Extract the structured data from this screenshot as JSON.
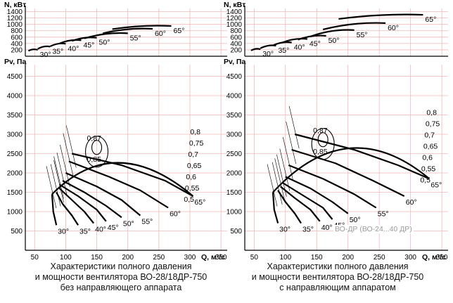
{
  "chart_data": [
    {
      "type": "line",
      "panel": "left",
      "power_axis": {
        "label": "N, кВт",
        "ticks": [
          200,
          400,
          600,
          800,
          1000,
          1200,
          1400
        ],
        "range": [
          0,
          1500
        ]
      },
      "power_curves": [
        {
          "angle": "30°",
          "q": [
            40,
            55
          ],
          "n": [
            170,
            200
          ]
        },
        {
          "angle": "35°",
          "q": [
            55,
            75
          ],
          "n": [
            230,
            300
          ]
        },
        {
          "angle": "40°",
          "q": [
            75,
            100
          ],
          "n": [
            310,
            390
          ]
        },
        {
          "angle": "45°",
          "q": [
            90,
            125
          ],
          "n": [
            400,
            500
          ]
        },
        {
          "angle": "50°",
          "q": [
            110,
            150
          ],
          "n": [
            480,
            580
          ]
        },
        {
          "angle": "55°",
          "q": [
            130,
            200
          ],
          "n": [
            560,
            720
          ]
        },
        {
          "angle": "60°",
          "q": [
            160,
            240
          ],
          "n": [
            720,
            860
          ]
        },
        {
          "angle": "65°",
          "q": [
            175,
            270
          ],
          "n": [
            850,
            950
          ]
        }
      ],
      "pressure_axis": {
        "label": "Pv, Па",
        "ticks": [
          500,
          1000,
          1500,
          2000,
          2500,
          3000,
          3500,
          4000,
          4500
        ],
        "range": [
          0,
          4800
        ]
      },
      "flow_axis": {
        "label": "Q, м³/с",
        "ticks": [
          50,
          100,
          150,
          200,
          250,
          300,
          350
        ],
        "range": [
          35,
          360
        ]
      },
      "blade_angles": [
        "30°",
        "35°",
        "40°",
        "45°",
        "50°",
        "55°",
        "60°",
        "65°"
      ],
      "pressure_curves": [
        {
          "angle": "30°",
          "q": [
            78,
            80,
            85
          ],
          "p": [
            1450,
            1000,
            650
          ]
        },
        {
          "angle": "35°",
          "q": [
            85,
            95,
            110,
            120
          ],
          "p": [
            1500,
            1200,
            900,
            650
          ]
        },
        {
          "angle": "40°",
          "q": [
            90,
            110,
            130,
            145
          ],
          "p": [
            1600,
            1300,
            1000,
            700
          ]
        },
        {
          "angle": "45°",
          "q": [
            90,
            120,
            150,
            165
          ],
          "p": [
            1700,
            1400,
            1050,
            750
          ]
        },
        {
          "angle": "50°",
          "q": [
            95,
            130,
            165,
            190
          ],
          "p": [
            1800,
            1500,
            1150,
            850
          ]
        },
        {
          "angle": "55°",
          "q": [
            100,
            150,
            190,
            220
          ],
          "p": [
            2000,
            1650,
            1300,
            900
          ]
        },
        {
          "angle": "60°",
          "q": [
            105,
            170,
            220,
            265
          ],
          "p": [
            2300,
            1900,
            1550,
            1100
          ]
        },
        {
          "angle": "65°",
          "q": [
            110,
            190,
            260,
            305
          ],
          "p": [
            2500,
            2200,
            1800,
            1400
          ]
        }
      ],
      "efficiency_lines": [
        "0,5",
        "0,55",
        "0,6",
        "0,65",
        "0,7",
        "0,75",
        "0,8",
        "0,85",
        "0,87"
      ],
      "caption": [
        "Характеристики полного давления",
        "и мощности вентилятора ВО-28/18ДР-750",
        "без направляющего аппарата"
      ]
    },
    {
      "type": "line",
      "panel": "right",
      "power_axis": {
        "label": "N, кВт",
        "ticks": [
          200,
          400,
          600,
          800,
          1000,
          1200,
          1400
        ],
        "range": [
          0,
          1500
        ]
      },
      "power_curves": [
        {
          "angle": "30°",
          "q": [
            45,
            60
          ],
          "n": [
            180,
            220
          ]
        },
        {
          "angle": "35°",
          "q": [
            60,
            85
          ],
          "n": [
            250,
            330
          ]
        },
        {
          "angle": "40°",
          "q": [
            80,
            110
          ],
          "n": [
            340,
            430
          ]
        },
        {
          "angle": "45°",
          "q": [
            95,
            135
          ],
          "n": [
            430,
            540
          ]
        },
        {
          "angle": "50°",
          "q": [
            120,
            165
          ],
          "n": [
            520,
            640
          ]
        },
        {
          "angle": "55°",
          "q": [
            140,
            210
          ],
          "n": [
            620,
            820
          ]
        },
        {
          "angle": "60°",
          "q": [
            160,
            260
          ],
          "n": [
            840,
            1040
          ]
        },
        {
          "angle": "65°",
          "q": [
            185,
            320
          ],
          "n": [
            1170,
            1300
          ]
        }
      ],
      "pressure_axis": {
        "label": "Pv, Па",
        "ticks": [
          500,
          1000,
          1500,
          2000,
          2500,
          3000,
          3500,
          4000,
          4500
        ],
        "range": [
          0,
          4800
        ]
      },
      "flow_axis": {
        "label": "Q, м³/с",
        "ticks": [
          50,
          100,
          150,
          200,
          250,
          300,
          350
        ],
        "range": [
          35,
          360
        ]
      },
      "blade_angles": [
        "30°",
        "35°",
        "40°",
        "45°",
        "50°",
        "55°",
        "60°",
        "65°"
      ],
      "pressure_curves": [
        {
          "angle": "30°",
          "q": [
            80,
            82,
            88
          ],
          "p": [
            1500,
            1050,
            700
          ]
        },
        {
          "angle": "35°",
          "q": [
            88,
            100,
            115,
            125
          ],
          "p": [
            1550,
            1250,
            950,
            700
          ]
        },
        {
          "angle": "40°",
          "q": [
            92,
            115,
            140,
            155
          ],
          "p": [
            1650,
            1350,
            1050,
            750
          ]
        },
        {
          "angle": "45°",
          "q": [
            95,
            125,
            160,
            175
          ],
          "p": [
            1750,
            1450,
            1100,
            800
          ]
        },
        {
          "angle": "50°",
          "q": [
            100,
            140,
            175,
            200
          ],
          "p": [
            1900,
            1600,
            1250,
            950
          ]
        },
        {
          "angle": "55°",
          "q": [
            105,
            160,
            210,
            245
          ],
          "p": [
            2200,
            1850,
            1450,
            1100
          ]
        },
        {
          "angle": "60°",
          "q": [
            110,
            180,
            240,
            290
          ],
          "p": [
            2600,
            2250,
            1800,
            1400
          ]
        },
        {
          "angle": "65°",
          "q": [
            115,
            210,
            280,
            330
          ],
          "p": [
            3000,
            2600,
            2200,
            1850
          ]
        }
      ],
      "efficiency_lines": [
        "0,5",
        "0,55",
        "0,6",
        "0,65",
        "0,7",
        "0,75",
        "0,8",
        "0,85",
        "0,87"
      ],
      "caption": [
        "Характеристики полного давления",
        "и мощности вентилятора ВО-28/18ДР-750",
        "с направляющим аппаратом"
      ]
    }
  ],
  "watermark": "ВО-ДР (ВО-24...40 ДР)"
}
